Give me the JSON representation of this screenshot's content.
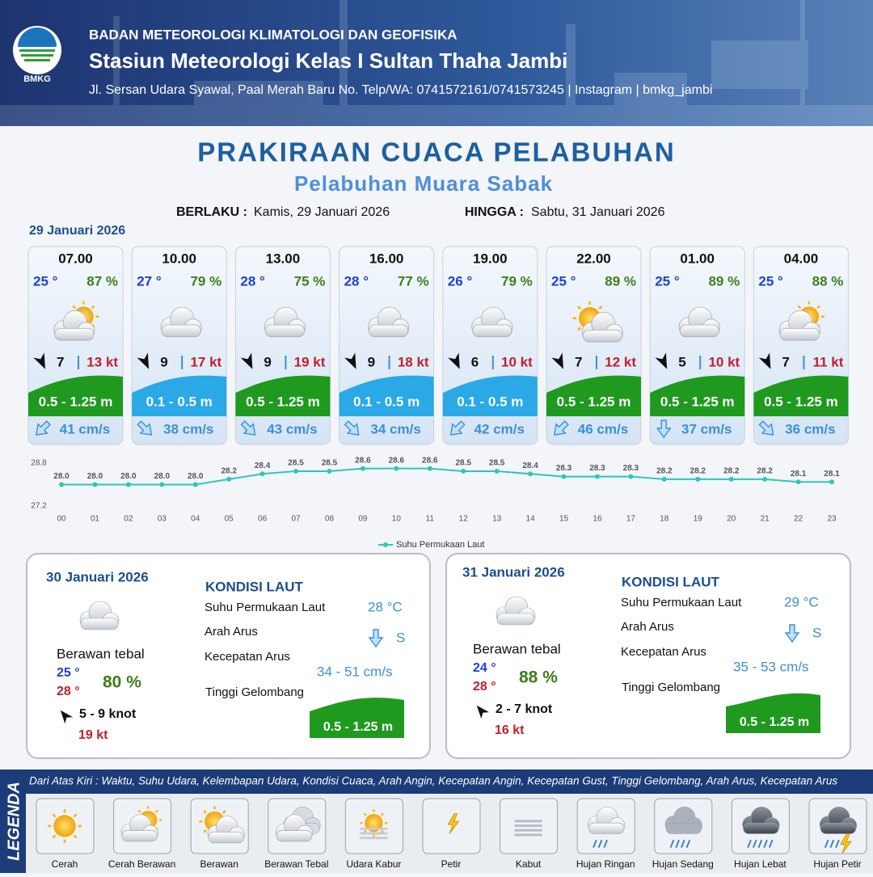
{
  "header": {
    "logo_text": "BMKG",
    "org": "BADAN METEOROLOGI KLIMATOLOGI DAN GEOFISIKA",
    "station": "Stasiun Meteorologi Kelas I Sultan Thaha Jambi",
    "address": "Jl. Sersan Udara Syawal, Paal Merah Baru No. Telp/WA: 0741572161/0741573245 | Instagram | bmkg_jambi"
  },
  "title": "PRAKIRAAN CUACA PELABUHAN",
  "subtitle": "Pelabuhan Muara Sabak",
  "validity": {
    "from_label": "BERLAKU :",
    "from": "Kamis, 29 Januari 2026",
    "to_label": "HINGGA :",
    "to": "Sabtu, 31 Januari 2026"
  },
  "day1": {
    "date": "29 Januari 2026",
    "cards": [
      {
        "time": "07.00",
        "temp": "25 °",
        "humidity": "87 %",
        "wind": "7",
        "gust": "13 kt",
        "wave": "0.5 - 1.25 m",
        "wave_color": "#1f9a1f",
        "current": "41 cm/s"
      },
      {
        "time": "10.00",
        "temp": "27 °",
        "humidity": "79 %",
        "wind": "9",
        "gust": "17 kt",
        "wave": "0.1 - 0.5 m",
        "wave_color": "#2aa9e6",
        "current": "38 cm/s"
      },
      {
        "time": "13.00",
        "temp": "28 °",
        "humidity": "75 %",
        "wind": "9",
        "gust": "19 kt",
        "wave": "0.5 - 1.25 m",
        "wave_color": "#1f9a1f",
        "current": "43 cm/s"
      },
      {
        "time": "16.00",
        "temp": "28 °",
        "humidity": "77 %",
        "wind": "9",
        "gust": "18 kt",
        "wave": "0.1 - 0.5 m",
        "wave_color": "#2aa9e6",
        "current": "34 cm/s"
      },
      {
        "time": "19.00",
        "temp": "26 °",
        "humidity": "79 %",
        "wind": "6",
        "gust": "10 kt",
        "wave": "0.1 - 0.5 m",
        "wave_color": "#2aa9e6",
        "current": "42 cm/s"
      },
      {
        "time": "22.00",
        "temp": "25 °",
        "humidity": "89 %",
        "wind": "7",
        "gust": "12 kt",
        "wave": "0.5 - 1.25 m",
        "wave_color": "#1f9a1f",
        "current": "46 cm/s"
      },
      {
        "time": "01.00",
        "temp": "25 °",
        "humidity": "89 %",
        "wind": "5",
        "gust": "10 kt",
        "wave": "0.5 - 1.25 m",
        "wave_color": "#1f9a1f",
        "current": "37 cm/s"
      },
      {
        "time": "04.00",
        "temp": "25 °",
        "humidity": "88 %",
        "wind": "7",
        "gust": "11 kt",
        "wave": "0.5 - 1.25 m",
        "wave_color": "#1f9a1f",
        "current": "36 cm/s"
      }
    ]
  },
  "chart_data": {
    "type": "line",
    "categories": [
      "00",
      "01",
      "02",
      "03",
      "04",
      "05",
      "06",
      "07",
      "08",
      "09",
      "10",
      "11",
      "12",
      "13",
      "14",
      "15",
      "16",
      "17",
      "18",
      "19",
      "20",
      "21",
      "22",
      "23"
    ],
    "series": [
      {
        "name": "Suhu Permukaan Laut",
        "color": "#2cc7b8",
        "values": [
          28.0,
          28.0,
          28.0,
          28.0,
          28.0,
          28.2,
          28.4,
          28.5,
          28.5,
          28.6,
          28.6,
          28.6,
          28.5,
          28.5,
          28.4,
          28.3,
          28.3,
          28.3,
          28.2,
          28.2,
          28.2,
          28.2,
          28.1,
          28.1
        ],
        "value_labels": [
          "28.0",
          "28.0",
          "28.0",
          "28.0",
          "28.0",
          "28.2",
          "28.4",
          "28.5",
          "28.5",
          "28.6",
          "28.6",
          "28.6",
          "28.5",
          "28.5",
          "28.4",
          "28.3",
          "28.3",
          "28.3",
          "28.2",
          "28.2",
          "28.2",
          "28.2",
          "28.1",
          "28.1"
        ]
      }
    ],
    "ylim": [
      27.2,
      28.8
    ],
    "yticks": [
      27.2,
      28.8
    ]
  },
  "days": [
    {
      "date": "30 Januari 2026",
      "condition": "Berawan tebal",
      "temp_min": "25 °",
      "temp_max": "28 °",
      "humidity": "80 %",
      "wind": "5  - 9 knot",
      "gust": "19 kt",
      "sea_title": "KONDISI LAUT",
      "sst_label": "Suhu Permukaan Laut",
      "sst": "28 °C",
      "dir_label": "Arah Arus",
      "dir": "S",
      "speed_label": "Kecepatan Arus",
      "speed": "34  - 51 cm/s",
      "wave_label": "Tinggi Gelombang",
      "wave": "0.5 - 1.25 m"
    },
    {
      "date": "31 Januari 2026",
      "condition": "Berawan tebal",
      "temp_min": "24 °",
      "temp_max": "28 °",
      "humidity": "88 %",
      "wind": "2  - 7 knot",
      "gust": "16 kt",
      "sea_title": "KONDISI LAUT",
      "sst_label": "Suhu Permukaan Laut",
      "sst": "29 °C",
      "dir_label": "Arah Arus",
      "dir": "S",
      "speed_label": "Kecepatan Arus",
      "speed": "35  - 53 cm/s",
      "wave_label": "Tinggi Gelombang",
      "wave": "0.5 - 1.25 m"
    }
  ],
  "legend": {
    "title": "LEGENDA",
    "description": "Dari Atas Kiri : Waktu, Suhu Udara, Kelembapan Udara, Kondisi Cuaca, Arah Angin, Kecepatan Angin, Kecepatan Gust, Tinggi Gelombang, Arah Arus, Kecepatan Arus",
    "items": [
      "Cerah",
      "Cerah Berawan",
      "Berawan",
      "Berawan Tebal",
      "Udara Kabur",
      "Petir",
      "Kabut",
      "Hujan Ringan",
      "Hujan Sedang",
      "Hujan Lebat",
      "Hujan Petir"
    ]
  }
}
